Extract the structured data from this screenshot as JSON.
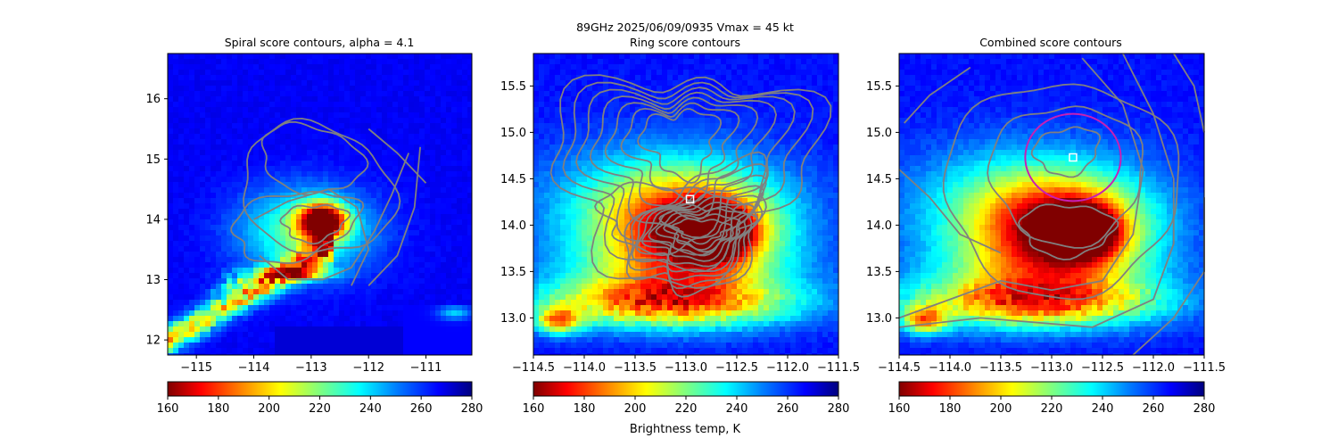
{
  "figure": {
    "suptitle_line1": "89GHz  2025/06/09/0935    Vmax = 45 kt",
    "colorbar_label": "Brightness temp, K"
  },
  "chart_data": [
    {
      "type": "heatmap",
      "title": "Spiral score contours, alpha =  4.1",
      "xlim": [
        -115.5,
        -110.2
      ],
      "ylim": [
        11.75,
        16.75
      ],
      "xticks": [
        -115,
        -114,
        -113,
        -112,
        -111
      ],
      "yticks": [
        12,
        13,
        14,
        15,
        16
      ],
      "colorbar": {
        "range": [
          160,
          280
        ],
        "ticks": [
          160,
          180,
          200,
          220,
          240,
          260,
          280
        ],
        "cmap": "jet_r"
      },
      "features": {
        "cold_core": [
          -112.8,
          13.95
        ],
        "spiral_band": true,
        "center_marker": null,
        "ring_circle": null
      }
    },
    {
      "type": "heatmap",
      "title": "Ring score contours",
      "xlim": [
        -114.5,
        -111.5
      ],
      "ylim": [
        12.6,
        15.85
      ],
      "xticks": [
        -114.5,
        -114.0,
        -113.5,
        -113.0,
        -112.5,
        -112.0,
        -111.5
      ],
      "yticks": [
        13.0,
        13.5,
        14.0,
        14.5,
        15.0,
        15.5
      ],
      "colorbar": {
        "range": [
          160,
          280
        ],
        "ticks": [
          160,
          180,
          200,
          220,
          240,
          260,
          280
        ],
        "cmap": "jet_r"
      },
      "features": {
        "cold_core": [
          -112.75,
          13.95
        ],
        "center_marker": [
          -112.96,
          14.28
        ],
        "ring_circle": null
      }
    },
    {
      "type": "heatmap",
      "title": "Combined score contours",
      "xlim": [
        -114.5,
        -111.5
      ],
      "ylim": [
        12.6,
        15.85
      ],
      "xticks": [
        -114.5,
        -114.0,
        -113.5,
        -113.0,
        -112.5,
        -112.0,
        -111.5
      ],
      "yticks": [
        13.0,
        13.5,
        14.0,
        14.5,
        15.0,
        15.5
      ],
      "colorbar": {
        "range": [
          160,
          280
        ],
        "ticks": [
          160,
          180,
          200,
          220,
          240,
          260,
          280
        ],
        "cmap": "jet_r"
      },
      "features": {
        "cold_core": [
          -112.75,
          13.95
        ],
        "center_marker": [
          -112.79,
          14.73
        ],
        "ring_circle": {
          "center": [
            -112.79,
            14.73
          ],
          "radius_deg": 0.47,
          "color": "#c71fb5"
        }
      }
    }
  ],
  "colors": {
    "contour": "#808080",
    "marker_edge": "#ffffff",
    "ring": "#c71fb5"
  }
}
